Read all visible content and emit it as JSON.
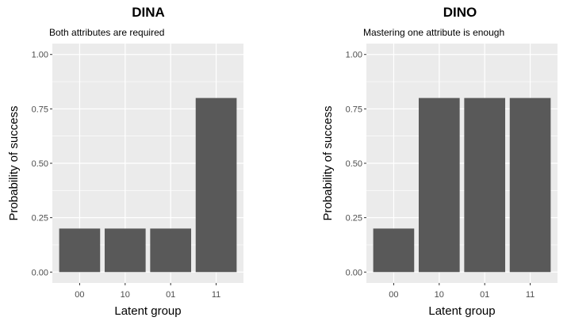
{
  "chart_data": [
    {
      "type": "bar",
      "title": "DINA",
      "subtitle": "Both attributes are required",
      "xlabel": "Latent group",
      "ylabel": "Probability of success",
      "categories": [
        "00",
        "10",
        "01",
        "11"
      ],
      "values": [
        0.2,
        0.2,
        0.2,
        0.8
      ],
      "ylim": [
        0,
        1
      ],
      "yticks": [
        0,
        0.25,
        0.5,
        0.75,
        1
      ],
      "ytick_labels": [
        "0.00",
        "0.25",
        "0.50",
        "0.75",
        "1.00"
      ],
      "grid": true,
      "colors": {
        "bar": "#595959",
        "panel": "#ebebeb",
        "grid": "#ffffff"
      }
    },
    {
      "type": "bar",
      "title": "DINO",
      "subtitle": "Mastering one attribute is enough",
      "xlabel": "Latent group",
      "ylabel": "Probability of success",
      "categories": [
        "00",
        "10",
        "01",
        "11"
      ],
      "values": [
        0.2,
        0.8,
        0.8,
        0.8
      ],
      "ylim": [
        0,
        1
      ],
      "yticks": [
        0,
        0.25,
        0.5,
        0.75,
        1
      ],
      "ytick_labels": [
        "0.00",
        "0.25",
        "0.50",
        "0.75",
        "1.00"
      ],
      "grid": true,
      "colors": {
        "bar": "#595959",
        "panel": "#ebebeb",
        "grid": "#ffffff"
      }
    }
  ]
}
